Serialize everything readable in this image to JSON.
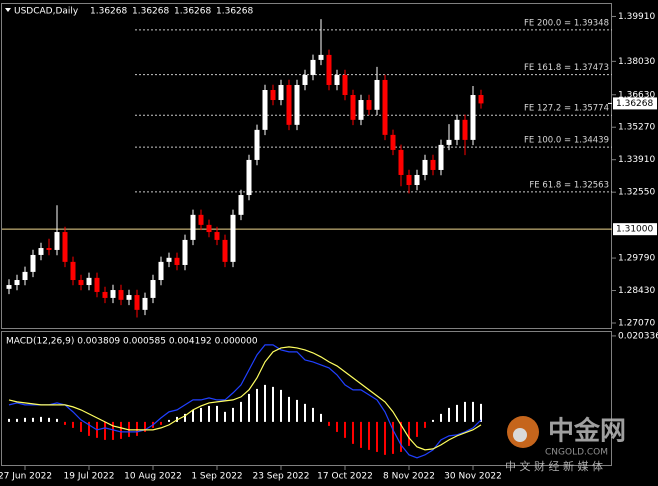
{
  "chart_data": [
    {
      "type": "candlestick",
      "title": "USDCAD,Daily",
      "quote": [
        1.36268,
        1.36268,
        1.36268,
        1.36268
      ],
      "categories": [
        null,
        null,
        "27 Jun 2022",
        null,
        null,
        null,
        null,
        null,
        null,
        null,
        "19 Jul 2022",
        null,
        null,
        null,
        null,
        null,
        null,
        null,
        "10 Aug 2022",
        null,
        null,
        null,
        null,
        null,
        null,
        null,
        "1 Sep 2022",
        null,
        null,
        null,
        null,
        null,
        null,
        null,
        "23 Sep 2022",
        null,
        null,
        null,
        null,
        null,
        null,
        null,
        "17 Oct 2022",
        null,
        null,
        null,
        null,
        null,
        null,
        null,
        "8 Nov 2022",
        null,
        null,
        null,
        null,
        null,
        null,
        null,
        "30 Nov 2022",
        null
      ],
      "open": [
        1.285,
        1.2866,
        1.2887,
        1.2921,
        1.2992,
        1.3021,
        1.3013,
        1.3088,
        1.2963,
        1.2887,
        1.2866,
        1.2896,
        1.2837,
        1.2812,
        1.2845,
        1.2804,
        1.2824,
        1.2762,
        1.2812,
        1.2887,
        1.2963,
        1.298,
        1.295,
        1.3055,
        1.316,
        1.3118,
        1.3088,
        1.3055,
        1.2963,
        1.316,
        1.3243,
        1.339,
        1.3516,
        1.3683,
        1.3641,
        1.3704,
        1.3537,
        1.3704,
        1.3746,
        1.3809,
        1.383,
        1.3704,
        1.3746,
        1.3662,
        1.3558,
        1.3641,
        1.36,
        1.3725,
        1.3495,
        1.3432,
        1.3327,
        1.3285,
        1.3327,
        1.339,
        1.3348,
        1.3453,
        1.3474,
        1.3558,
        1.3474,
        1.3662
      ],
      "high": [
        1.289,
        1.2909,
        1.2943,
        1.3014,
        1.3043,
        1.306,
        1.32,
        1.311,
        1.2985,
        1.2909,
        1.2918,
        1.2918,
        1.2859,
        1.2867,
        1.2867,
        1.2846,
        1.2846,
        1.2834,
        1.2909,
        1.2985,
        1.3002,
        1.3002,
        1.3077,
        1.3182,
        1.3182,
        1.314,
        1.311,
        1.3077,
        1.3182,
        1.3265,
        1.3412,
        1.3538,
        1.3705,
        1.3705,
        1.3726,
        1.3726,
        1.3726,
        1.3768,
        1.3831,
        1.398,
        1.3852,
        1.3768,
        1.3768,
        1.3684,
        1.3663,
        1.3663,
        1.378,
        1.3747,
        1.3517,
        1.3454,
        1.3349,
        1.3349,
        1.3412,
        1.3412,
        1.3475,
        1.354,
        1.358,
        1.358,
        1.37,
        1.3684
      ],
      "low": [
        1.2828,
        1.2844,
        1.2865,
        1.2899,
        1.297,
        1.2991,
        1.2991,
        1.2941,
        1.2865,
        1.2844,
        1.2844,
        1.2815,
        1.279,
        1.279,
        1.2782,
        1.2782,
        1.273,
        1.274,
        1.279,
        1.2865,
        1.2941,
        1.2928,
        1.2928,
        1.3033,
        1.3096,
        1.3066,
        1.3033,
        1.2941,
        1.2941,
        1.3138,
        1.3221,
        1.3368,
        1.3494,
        1.3619,
        1.3619,
        1.3515,
        1.3515,
        1.3682,
        1.3724,
        1.3787,
        1.3682,
        1.3682,
        1.364,
        1.3536,
        1.3536,
        1.3578,
        1.3578,
        1.3473,
        1.341,
        1.328,
        1.325,
        1.3263,
        1.3305,
        1.3326,
        1.3326,
        1.3431,
        1.3452,
        1.341,
        1.3452,
        1.3605
      ],
      "close": [
        1.2866,
        1.2887,
        1.2921,
        1.2992,
        1.3021,
        1.3013,
        1.3088,
        1.2963,
        1.2887,
        1.2866,
        1.2896,
        1.2837,
        1.2812,
        1.2845,
        1.2804,
        1.2824,
        1.2762,
        1.2812,
        1.2887,
        1.2963,
        1.298,
        1.295,
        1.3055,
        1.316,
        1.3118,
        1.3088,
        1.3055,
        1.2963,
        1.316,
        1.3243,
        1.339,
        1.3516,
        1.3683,
        1.3641,
        1.3704,
        1.3537,
        1.3704,
        1.3746,
        1.3809,
        1.383,
        1.3704,
        1.3746,
        1.3662,
        1.3558,
        1.3641,
        1.36,
        1.3725,
        1.3495,
        1.3432,
        1.3327,
        1.3285,
        1.3327,
        1.339,
        1.3348,
        1.3453,
        1.3474,
        1.3558,
        1.3474,
        1.3662,
        1.36268
      ],
      "up_color": "#ffffff",
      "down_color": "#ff0000",
      "ylim": [
        1.2686,
        1.406
      ],
      "yticks": [
        {
          "value": 1.3991,
          "label": "1.39910"
        },
        {
          "value": 1.3803,
          "label": "1.38030"
        },
        {
          "value": 1.3663,
          "label": "1.36630"
        },
        {
          "value": 1.3527,
          "label": "1.35270"
        },
        {
          "value": 1.3391,
          "label": "1.33910"
        },
        {
          "value": 1.3255,
          "label": "1.32550"
        },
        {
          "value": 1.2979,
          "label": "1.29790"
        },
        {
          "value": 1.2843,
          "label": "1.28430"
        },
        {
          "value": 1.2707,
          "label": "1.27070"
        }
      ],
      "levels": [
        {
          "value": 1.39348,
          "label": "FE 200.0 = 1.39348"
        },
        {
          "value": 1.37473,
          "label": "FE 161.8 = 1.37473"
        },
        {
          "value": 1.35774,
          "label": "FE 127.2 = 1.35774"
        },
        {
          "value": 1.34439,
          "label": "FE 100.0 = 1.34439"
        },
        {
          "value": 1.32563,
          "label": "FE 61.8 = 1.32563"
        }
      ],
      "level_color": "#c8c8c8",
      "price_line": {
        "value": 1.31,
        "label": "1.31000",
        "color": "#f0d890"
      },
      "last_price": 1.36268
    },
    {
      "type": "macd",
      "title": "MACD(12,26,9) 0.003809 0.000585 0.004192 0.000000",
      "ylim": [
        -0.0102,
        0.0215
      ],
      "yticks": [
        0.020336
      ],
      "histogram": {
        "up_color": "#ffffff",
        "down_color": "#ff0000",
        "values": [
          0.00071,
          0.00071,
          0.00095,
          0.00095,
          0.00118,
          0.00095,
          0.00071,
          -0.00071,
          -0.00142,
          -0.00237,
          -0.00331,
          -0.00378,
          -0.00426,
          -0.00426,
          -0.00402,
          -0.00355,
          -0.00331,
          -0.00237,
          -0.00142,
          -0.00071,
          0.00047,
          0.00118,
          0.00189,
          0.00284,
          0.00331,
          0.00378,
          0.00378,
          0.00237,
          0.00331,
          0.00473,
          0.00662,
          0.0078,
          0.00875,
          0.00828,
          0.00757,
          0.00591,
          0.0052,
          0.00426,
          0.00331,
          0.00189,
          -0.00095,
          -0.00237,
          -0.00378,
          -0.0052,
          -0.00615,
          -0.00662,
          -0.0071,
          -0.0078,
          -0.00757,
          -0.0071,
          -0.00568,
          -0.00355,
          -0.00142,
          0.00047,
          0.00189,
          0.00331,
          0.00402,
          0.00473,
          0.00473,
          0.00426
        ]
      },
      "series": [
        {
          "color": "#2040ff",
          "values": [
            0.00402,
            0.00449,
            0.00402,
            0.00402,
            0.00402,
            0.00402,
            0.00449,
            0.00402,
            0.00237,
            0.00047,
            -0.00071,
            -0.00189,
            -0.00142,
            -0.00189,
            -0.00237,
            -0.00237,
            -0.00237,
            -0.00189,
            -0.00071,
            0.00095,
            0.00237,
            0.00284,
            0.00402,
            0.0052,
            0.0052,
            0.00568,
            0.0052,
            0.0052,
            0.00686,
            0.00875,
            0.0123,
            0.01585,
            0.01821,
            0.01821,
            0.01703,
            0.01656,
            0.01656,
            0.01466,
            0.01419,
            0.01348,
            0.01277,
            0.01112,
            0.00875,
            0.00757,
            0.00757,
            0.00639,
            0.0052,
            0.00237,
            -0.00189,
            -0.00544,
            -0.0078,
            -0.00851,
            -0.0078,
            -0.00662,
            -0.00426,
            -0.00331,
            -0.00307,
            -0.00237,
            -0.00142,
            0.00047
          ]
        },
        {
          "color": "#ffff60",
          "values": [
            0.0052,
            0.00473,
            0.00449,
            0.00426,
            0.00402,
            0.00402,
            0.00402,
            0.00402,
            0.00355,
            0.00284,
            0.00189,
            0.00095,
            0,
            -0.00095,
            -0.00142,
            -0.00189,
            -0.00189,
            -0.00189,
            -0.00189,
            -0.00142,
            -0.00071,
            0.00047,
            0.00142,
            0.00284,
            0.00378,
            0.00449,
            0.00473,
            0.00497,
            0.0052,
            0.00591,
            0.00757,
            0.01041,
            0.01419,
            0.01656,
            0.0175,
            0.01774,
            0.0175,
            0.01703,
            0.01632,
            0.01537,
            0.01419,
            0.01324,
            0.01183,
            0.01041,
            0.00899,
            0.00757,
            0.00615,
            0.00473,
            0.00237,
            -0.00071,
            -0.00378,
            -0.00591,
            -0.00662,
            -0.00639,
            -0.00544,
            -0.00426,
            -0.00331,
            -0.0026,
            -0.00189,
            -0.00071
          ]
        }
      ]
    }
  ],
  "watermark": {
    "logo": "中金网",
    "site": "CNGOLD.COM",
    "slogan": "中 文 财 经 新 媒 体"
  }
}
